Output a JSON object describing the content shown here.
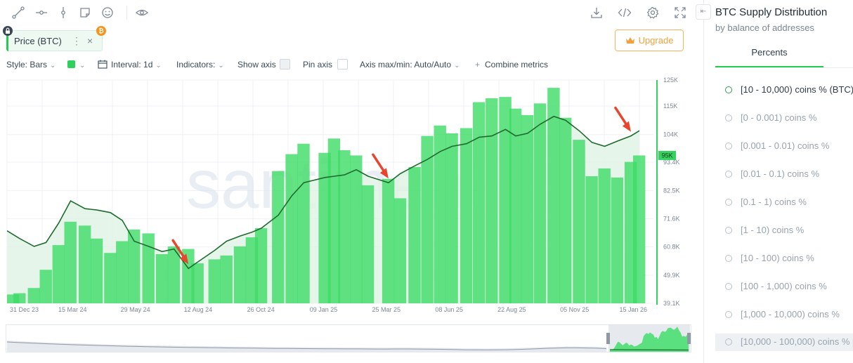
{
  "toolbar": {
    "left_icons": [
      "trend-line-icon",
      "horizontal-ray-icon",
      "vertical-line-icon",
      "sticky-note-icon",
      "emoji-icon",
      "eye-icon"
    ],
    "right_icons": [
      "download-icon",
      "embed-code-icon",
      "settings-gear-icon",
      "fullscreen-icon"
    ]
  },
  "metric_chip": {
    "label": "Price (BTC)",
    "dots": "⋮",
    "close": "×",
    "btc_badge": "₿"
  },
  "upgrade": {
    "label": "Upgrade"
  },
  "settings": {
    "style": "Style: Bars",
    "interval": "Interval: 1d",
    "indicators": "Indicators:",
    "show_axis": "Show axis",
    "pin_axis": "Pin axis",
    "axis_maxmin": "Axis max/min: Auto/Auto",
    "combine": "Combine metrics"
  },
  "watermark": "santiment",
  "panel": {
    "title": "BTC Supply Distribution",
    "subtitle": "by balance of addresses",
    "tab": "Percents",
    "items": [
      {
        "label": "[10 - 10,000) coins % (BTC)",
        "active": true
      },
      {
        "label": "[0 - 0.001) coins %",
        "active": false
      },
      {
        "label": "[0.001 - 0.01) coins %",
        "active": false
      },
      {
        "label": "[0.01 - 0.1) coins %",
        "active": false
      },
      {
        "label": "[0.1 - 1) coins %",
        "active": false
      },
      {
        "label": "[1 - 10) coins %",
        "active": false
      },
      {
        "label": "[10 - 100) coins %",
        "active": false
      },
      {
        "label": "[100 - 1,000) coins %",
        "active": false
      },
      {
        "label": "[1,000 - 10,000) coins %",
        "active": false
      },
      {
        "label": "[10,000 - 100,000) coins %",
        "active": false
      }
    ]
  },
  "colors": {
    "bars": "#3ddc66",
    "bars_light": "#7fef9b",
    "line": "#1f6b2e",
    "accent": "#26c953",
    "upgrade": "#f2a13a",
    "arrow": "#e8452c"
  },
  "chart_data": {
    "type": "bar",
    "x_tick_labels": [
      "31 Dec 23",
      "15 Mar 24",
      "29 May 24",
      "12 Aug 24",
      "26 Oct 24",
      "09 Jan 25",
      "25 Mar 25",
      "08 Jun 25",
      "22 Aug 25",
      "05 Nov 25",
      "15 Jan 26"
    ],
    "y_tick_labels": [
      "125K",
      "115K",
      "104K",
      "93.4K",
      "82.5K",
      "71.6K",
      "60.8K",
      "49.9K",
      "39.1K"
    ],
    "y_range": [
      39100,
      125000
    ],
    "current_price_label": "95K",
    "series": [
      {
        "metric": "Price (BTC)",
        "style": "bars",
        "unit": "USD",
        "dates": [
          "2023-12-31",
          "2024-01-15",
          "2024-02-01",
          "2024-02-15",
          "2024-03-01",
          "2024-03-15",
          "2024-04-01",
          "2024-04-15",
          "2024-05-01",
          "2024-05-15",
          "2024-05-29",
          "2024-06-15",
          "2024-07-01",
          "2024-07-15",
          "2024-08-01",
          "2024-08-12",
          "2024-09-01",
          "2024-09-15",
          "2024-10-01",
          "2024-10-15",
          "2024-10-26",
          "2024-11-15",
          "2024-12-01",
          "2024-12-15",
          "2025-01-09",
          "2025-01-20",
          "2025-02-01",
          "2025-02-15",
          "2025-03-01",
          "2025-03-25",
          "2025-04-08",
          "2025-04-25",
          "2025-05-10",
          "2025-05-25",
          "2025-06-08",
          "2025-06-25",
          "2025-07-10",
          "2025-07-25",
          "2025-08-10",
          "2025-08-22",
          "2025-09-05",
          "2025-09-20",
          "2025-10-06",
          "2025-10-20",
          "2025-11-05",
          "2025-11-20",
          "2025-12-05",
          "2025-12-20",
          "2026-01-05",
          "2026-01-15"
        ],
        "values": [
          42500,
          43000,
          45000,
          52000,
          61500,
          70500,
          69000,
          64000,
          58500,
          63000,
          67500,
          66000,
          58000,
          61000,
          60000,
          54500,
          56000,
          57500,
          61000,
          64500,
          68000,
          90000,
          96500,
          100500,
          97000,
          102500,
          98000,
          96000,
          84500,
          87000,
          79500,
          91500,
          103500,
          107500,
          104500,
          106500,
          116500,
          118000,
          118500,
          114000,
          111500,
          116000,
          122000,
          110500,
          102000,
          88000,
          91000,
          87500,
          93500,
          96000
        ]
      },
      {
        "metric": "[10 - 10,000) coins % (BTC)",
        "style": "line",
        "dates": [
          "2023-12-31",
          "2024-01-15",
          "2024-02-01",
          "2024-02-15",
          "2024-03-01",
          "2024-03-15",
          "2024-04-01",
          "2024-04-15",
          "2024-05-01",
          "2024-05-15",
          "2024-05-29",
          "2024-06-15",
          "2024-07-01",
          "2024-07-15",
          "2024-08-01",
          "2024-08-12",
          "2024-09-01",
          "2024-09-15",
          "2024-10-01",
          "2024-10-15",
          "2024-10-26",
          "2024-11-15",
          "2024-12-01",
          "2024-12-15",
          "2025-01-09",
          "2025-01-20",
          "2025-02-01",
          "2025-02-15",
          "2025-03-01",
          "2025-03-25",
          "2025-04-08",
          "2025-04-25",
          "2025-05-10",
          "2025-05-25",
          "2025-06-08",
          "2025-06-25",
          "2025-07-10",
          "2025-07-25",
          "2025-08-10",
          "2025-08-22",
          "2025-09-05",
          "2025-09-20",
          "2025-10-06",
          "2025-10-20",
          "2025-11-05",
          "2025-11-20",
          "2025-12-05",
          "2025-12-20",
          "2026-01-05",
          "2026-01-15"
        ],
        "values_in_price_axis_units": [
          67000,
          64000,
          61000,
          62500,
          70000,
          78500,
          75500,
          75000,
          74000,
          71000,
          63000,
          61000,
          59000,
          60000,
          52500,
          55000,
          59500,
          63000,
          65000,
          66500,
          68000,
          73000,
          80500,
          85500,
          87500,
          88000,
          88500,
          90500,
          88000,
          85500,
          89000,
          92000,
          94500,
          97500,
          99500,
          100500,
          103000,
          103500,
          106000,
          103500,
          104500,
          108000,
          111000,
          109500,
          105500,
          101000,
          99500,
          101500,
          103500,
          105500
        ]
      }
    ],
    "annotations": [
      {
        "type": "arrow",
        "target_date": "2024-08-01"
      },
      {
        "type": "arrow",
        "target_date": "2025-03-25"
      },
      {
        "type": "arrow",
        "target_date": "2026-01-05"
      }
    ],
    "grid": true,
    "navigator": true
  }
}
